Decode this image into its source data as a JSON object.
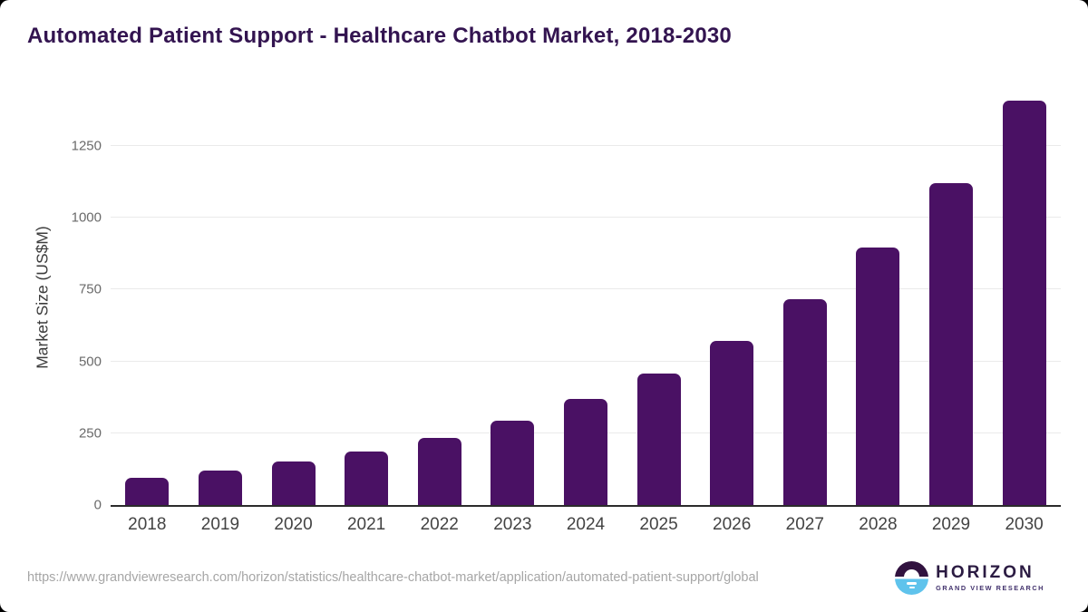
{
  "title": "Automated Patient Support - Healthcare Chatbot Market, 2018-2030",
  "chart_data": {
    "type": "bar",
    "categories": [
      "2018",
      "2019",
      "2020",
      "2021",
      "2022",
      "2023",
      "2024",
      "2025",
      "2026",
      "2027",
      "2028",
      "2029",
      "2030"
    ],
    "values": [
      95,
      121,
      150,
      187,
      234,
      295,
      368,
      458,
      572,
      716,
      897,
      1120,
      1408
    ],
    "title": "Automated Patient Support - Healthcare Chatbot Market, 2018-2030",
    "xlabel": "",
    "ylabel": "Market Size (US$M)",
    "ylim": [
      0,
      1450
    ],
    "yticks": [
      0,
      250,
      500,
      750,
      1000,
      1250
    ],
    "grid": "horizontal",
    "legend": "none",
    "bar_color": "#4a1164"
  },
  "footer": {
    "source_url": "https://www.grandviewresearch.com/horizon/statistics/healthcare-chatbot-market/application/automated-patient-support/global"
  },
  "logo": {
    "name": "HORIZON",
    "subtitle": "GRAND VIEW RESEARCH"
  },
  "colors": {
    "bar": "#4a1164",
    "title_text": "#331450",
    "axis_line": "#2b2b2b",
    "gridline": "#eaeaea",
    "y_tick_text": "#6a6a6a",
    "x_tick_text": "#434343",
    "footer_text": "#a6a6a6",
    "logo_purple": "#31123f",
    "logo_blue": "#5fc3ec"
  }
}
